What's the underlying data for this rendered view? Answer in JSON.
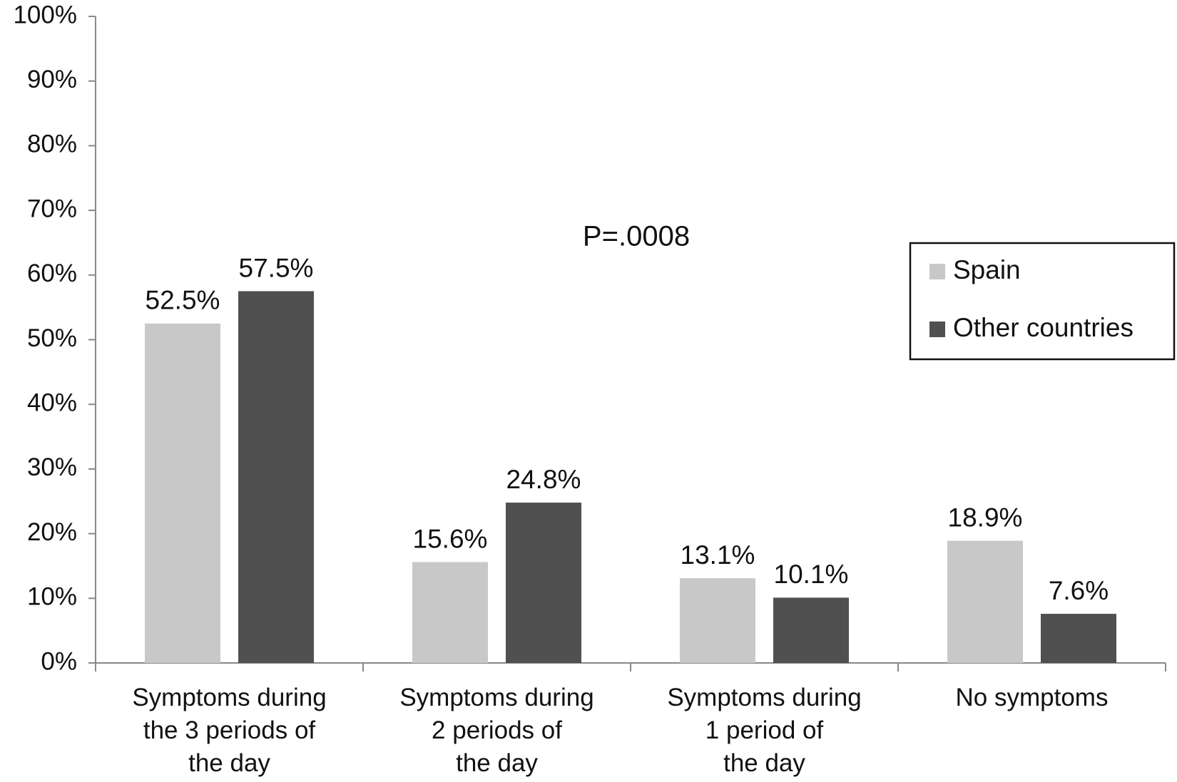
{
  "chart_data": {
    "type": "bar",
    "annotation": "P=.0008",
    "categories": [
      "Symptoms during\nthe 3 periods of\nthe day",
      "Symptoms during\n2 periods of\nthe day",
      "Symptoms during\n1 period of\nthe day",
      "No symptoms"
    ],
    "series": [
      {
        "name": "Spain",
        "color": "#c8c8c8",
        "values": [
          52.5,
          15.6,
          13.1,
          18.9
        ],
        "value_labels": [
          "52.5%",
          "15.6%",
          "13.1%",
          "18.9%"
        ]
      },
      {
        "name": "Other countries",
        "color": "#505050",
        "values": [
          57.5,
          24.8,
          10.1,
          7.6
        ],
        "value_labels": [
          "57.5%",
          "24.8%",
          "10.1%",
          "7.6%"
        ]
      }
    ],
    "ylim": [
      0,
      100
    ],
    "yticks": [
      {
        "value": 0,
        "label": "0%"
      },
      {
        "value": 10,
        "label": "10%"
      },
      {
        "value": 20,
        "label": "20%"
      },
      {
        "value": 30,
        "label": "30%"
      },
      {
        "value": 40,
        "label": "40%"
      },
      {
        "value": 50,
        "label": "50%"
      },
      {
        "value": 60,
        "label": "60%"
      },
      {
        "value": 70,
        "label": "70%"
      },
      {
        "value": 80,
        "label": "80%"
      },
      {
        "value": 90,
        "label": "90%"
      },
      {
        "value": 100,
        "label": "100%"
      }
    ],
    "legend": "right"
  }
}
